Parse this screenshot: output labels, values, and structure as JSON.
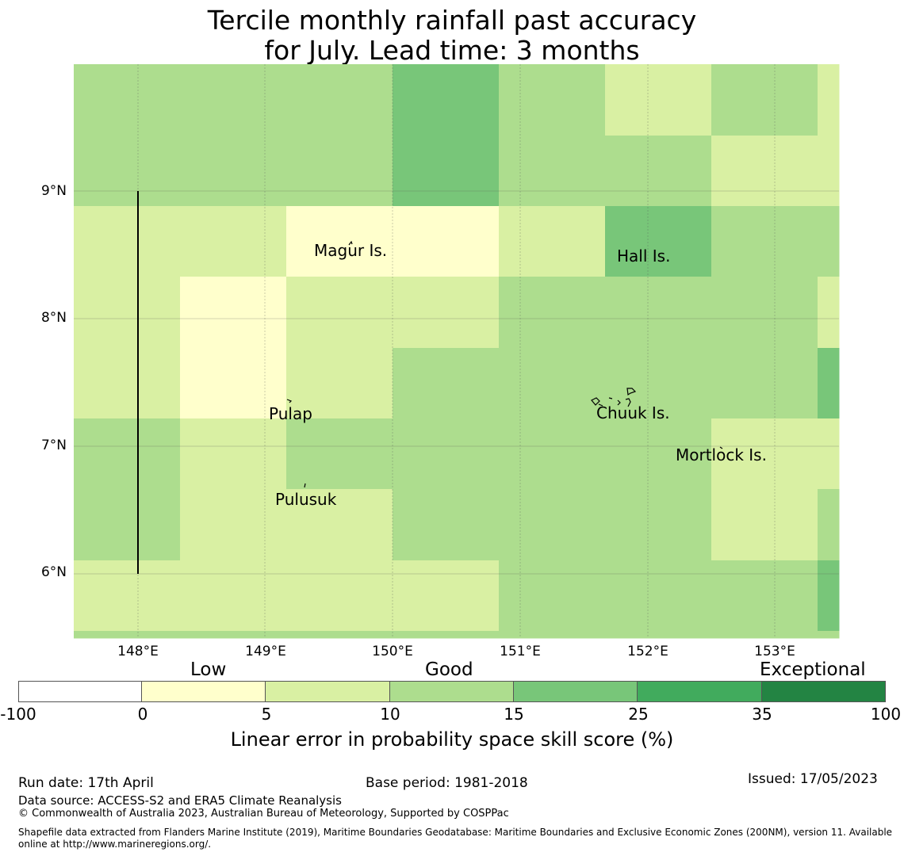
{
  "title": {
    "line1": "Tercile monthly rainfall past accuracy",
    "line2": "for July. Lead time: 3 months"
  },
  "map": {
    "lat_labels": [
      "9°N",
      "8°N",
      "7°N",
      "6°N"
    ],
    "lon_labels": [
      "148°E",
      "149°E",
      "150°E",
      "151°E",
      "152°E",
      "153°E"
    ],
    "places": [
      "Magur Is.",
      "Hall Is.",
      "Pulap",
      "Chuuk Is.",
      "Mortlock Is.",
      "Pulusuk"
    ],
    "cell_colors": {
      "low": "#ffffcc",
      "5-10": "#d9f0a3",
      "10-15": "#addd8e",
      "15-25": "#78c679",
      "25-35": "#41ab5d",
      "35-100": "#238443"
    },
    "skill_grid_categories": [
      [
        "10-15",
        "10-15",
        "10-15",
        "15-25",
        "10-15",
        "5-10",
        "10-15",
        "5-10"
      ],
      [
        "10-15",
        "10-15",
        "10-15",
        "15-25",
        "10-15",
        "10-15",
        "5-10",
        "5-10"
      ],
      [
        "5-10",
        "5-10",
        "low",
        "low",
        "5-10",
        "15-25",
        "10-15",
        "10-15"
      ],
      [
        "5-10",
        "low",
        "5-10",
        "5-10",
        "10-15",
        "10-15",
        "10-15",
        "5-10"
      ],
      [
        "5-10",
        "low",
        "5-10",
        "10-15",
        "10-15",
        "10-15",
        "10-15",
        "15-25"
      ],
      [
        "10-15",
        "5-10",
        "10-15",
        "10-15",
        "10-15",
        "10-15",
        "5-10",
        "5-10"
      ],
      [
        "10-15",
        "5-10",
        "5-10",
        "10-15",
        "10-15",
        "10-15",
        "5-10",
        "10-15"
      ],
      [
        "5-10",
        "5-10",
        "5-10",
        "5-10",
        "10-15",
        "10-15",
        "10-15",
        "15-25"
      ],
      [
        "10-15",
        "10-15",
        "10-15",
        "10-15",
        "10-15",
        "10-15",
        "10-15",
        "10-15"
      ]
    ]
  },
  "colorbar": {
    "category_labels": [
      "Low",
      "Good",
      "Exceptional"
    ],
    "ticks": [
      "-100",
      "0",
      "5",
      "10",
      "15",
      "25",
      "35",
      "100"
    ],
    "colors": [
      "#ffffff",
      "#ffffcc",
      "#d9f0a3",
      "#addd8e",
      "#78c679",
      "#41ab5d",
      "#238443"
    ],
    "title": "Linear error in probability space skill score (%)"
  },
  "footer": {
    "run_date": "Run date: 17th April",
    "base_period": "Base period: 1981-2018",
    "issued": "Issued: 17/05/2023",
    "data_source": "Data source: ACCESS-S2 and ERA5 Climate Reanalysis",
    "copyright": "© Commonwealth of Australia 2023, Australian Bureau of Meteorology, Supported by COSPPac",
    "shapefile_line1": "Shapefile data extracted from Flanders Marine Institute (2019), Maritime Boundaries Geodatabase: Maritime Boundaries and Exclusive Economic Zones (200NM), version 11. Available",
    "shapefile_line2": "online at http://www.marineregions.org/."
  }
}
